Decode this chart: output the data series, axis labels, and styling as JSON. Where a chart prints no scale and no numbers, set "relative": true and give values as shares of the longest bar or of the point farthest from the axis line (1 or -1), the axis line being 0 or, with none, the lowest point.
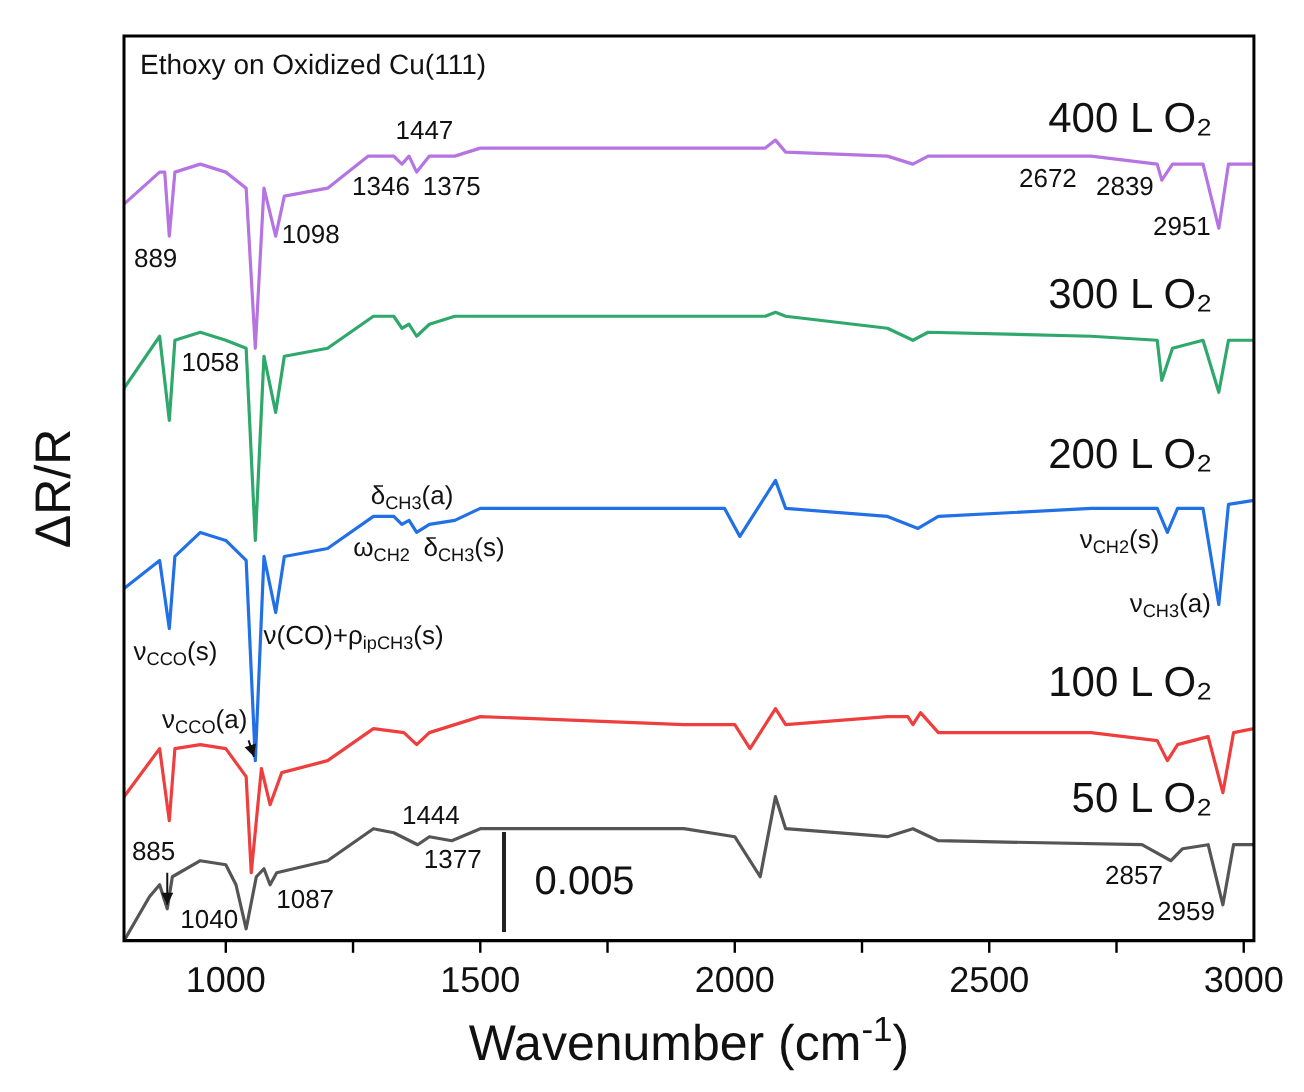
{
  "chart_data": {
    "type": "line",
    "title": "Ethoxy on Oxidized Cu(111)",
    "xlabel": "Wavenumber (cm$^{-1}$)",
    "ylabel": "ΔR/R",
    "relative": true,
    "xlim": [
      800,
      3020
    ],
    "xticks": [
      1000,
      {
        "value": 1250,
        "label": null
      },
      1500,
      {
        "value": 1750,
        "label": null
      },
      2000,
      {
        "value": 2250,
        "label": null
      },
      2500,
      {
        "value": 2750,
        "label": null
      },
      3000
    ],
    "grid": false,
    "legend": false,
    "tick_labels": "x",
    "marker": "none",
    "line_style": "solid",
    "series": [
      {
        "name": "400 L O₂",
        "color": "#b574e2",
        "x": [
          800,
          870,
          880,
          889,
          900,
          950,
          1000,
          1040,
          1058,
          1075,
          1098,
          1115,
          1200,
          1280,
          1330,
          1346,
          1360,
          1375,
          1400,
          1450,
          1500,
          1600,
          1800,
          2060,
          2080,
          2100,
          2300,
          2350,
          2380,
          2672,
          2700,
          2830,
          2839,
          2860,
          2920,
          2951,
          2970,
          3020
        ],
        "values": [
          0.92,
          0.96,
          0.96,
          0.88,
          0.96,
          0.97,
          0.96,
          0.94,
          0.74,
          0.94,
          0.88,
          0.93,
          0.94,
          0.98,
          0.98,
          0.97,
          0.98,
          0.96,
          0.98,
          0.98,
          0.99,
          0.99,
          0.99,
          0.99,
          1.0,
          0.985,
          0.98,
          0.97,
          0.98,
          0.98,
          0.98,
          0.97,
          0.95,
          0.97,
          0.97,
          0.89,
          0.97,
          0.97
        ]
      },
      {
        "name": "300 L O₂",
        "color": "#2fa86c",
        "x": [
          800,
          870,
          889,
          900,
          950,
          1000,
          1040,
          1058,
          1075,
          1098,
          1115,
          1200,
          1290,
          1330,
          1346,
          1360,
          1375,
          1400,
          1450,
          1500,
          1800,
          2060,
          2080,
          2100,
          2300,
          2350,
          2380,
          2700,
          2830,
          2839,
          2860,
          2920,
          2951,
          2970,
          3020
        ],
        "values": [
          0.69,
          0.755,
          0.65,
          0.75,
          0.76,
          0.75,
          0.74,
          0.5,
          0.73,
          0.66,
          0.73,
          0.74,
          0.78,
          0.78,
          0.765,
          0.77,
          0.755,
          0.77,
          0.78,
          0.78,
          0.78,
          0.78,
          0.785,
          0.78,
          0.765,
          0.75,
          0.76,
          0.755,
          0.75,
          0.7,
          0.74,
          0.75,
          0.685,
          0.75,
          0.75
        ]
      },
      {
        "name": "200 L O₂",
        "color": "#2270e6",
        "x": [
          800,
          870,
          889,
          900,
          950,
          1000,
          1040,
          1058,
          1075,
          1098,
          1115,
          1200,
          1290,
          1330,
          1346,
          1360,
          1375,
          1400,
          1450,
          1500,
          1800,
          1980,
          2010,
          2040,
          2080,
          2100,
          2300,
          2360,
          2400,
          2700,
          2830,
          2850,
          2870,
          2920,
          2951,
          2970,
          3020
        ],
        "values": [
          0.44,
          0.475,
          0.39,
          0.48,
          0.51,
          0.5,
          0.475,
          0.225,
          0.48,
          0.41,
          0.48,
          0.49,
          0.53,
          0.53,
          0.52,
          0.525,
          0.51,
          0.52,
          0.525,
          0.54,
          0.54,
          0.54,
          0.505,
          0.535,
          0.575,
          0.54,
          0.53,
          0.515,
          0.53,
          0.54,
          0.54,
          0.51,
          0.54,
          0.54,
          0.42,
          0.545,
          0.55
        ]
      },
      {
        "name": "100 L O₂",
        "color": "#ef3e3e",
        "x": [
          800,
          870,
          889,
          900,
          950,
          1000,
          1040,
          1050,
          1070,
          1087,
          1110,
          1200,
          1290,
          1350,
          1375,
          1400,
          1500,
          1900,
          2000,
          2030,
          2060,
          2080,
          2100,
          2300,
          2340,
          2350,
          2365,
          2400,
          2700,
          2830,
          2850,
          2870,
          2930,
          2959,
          2980,
          3020
        ],
        "values": [
          0.18,
          0.24,
          0.15,
          0.24,
          0.245,
          0.24,
          0.205,
          0.085,
          0.215,
          0.17,
          0.21,
          0.225,
          0.265,
          0.26,
          0.245,
          0.26,
          0.28,
          0.27,
          0.27,
          0.24,
          0.27,
          0.29,
          0.27,
          0.28,
          0.28,
          0.27,
          0.285,
          0.26,
          0.26,
          0.25,
          0.225,
          0.245,
          0.255,
          0.185,
          0.26,
          0.265
        ]
      },
      {
        "name": "50 L O₂",
        "color": "#555555",
        "x": [
          800,
          850,
          870,
          885,
          895,
          950,
          1000,
          1020,
          1040,
          1060,
          1075,
          1087,
          1100,
          1200,
          1290,
          1330,
          1377,
          1400,
          1444,
          1500,
          1900,
          2000,
          2050,
          2080,
          2100,
          2300,
          2350,
          2400,
          2800,
          2857,
          2880,
          2930,
          2959,
          2980,
          3020
        ],
        "values": [
          0,
          0.055,
          0.07,
          0.04,
          0.08,
          0.1,
          0.095,
          0.07,
          0.015,
          0.08,
          0.09,
          0.07,
          0.085,
          0.1,
          0.14,
          0.135,
          0.12,
          0.13,
          0.125,
          0.14,
          0.14,
          0.13,
          0.08,
          0.18,
          0.14,
          0.13,
          0.14,
          0.125,
          0.12,
          0.1,
          0.115,
          0.12,
          0.045,
          0.12,
          0.12
        ]
      }
    ],
    "annotations": [
      {
        "text": "889",
        "x": 889,
        "y": 0.88
      },
      {
        "text": "1098",
        "x": 1098,
        "y": 0.88
      },
      {
        "text": "1058",
        "x": 1058,
        "y": 0.74
      },
      {
        "text": "1346",
        "x": 1346,
        "y": 0.97
      },
      {
        "text": "1375",
        "x": 1375,
        "y": 0.96
      },
      {
        "text": "1447",
        "x": 1447,
        "y": 0.98
      },
      {
        "text": "2672",
        "x": 2672,
        "y": 0.98
      },
      {
        "text": "2839",
        "x": 2839,
        "y": 0.95
      },
      {
        "text": "2951",
        "x": 2951,
        "y": 0.89
      },
      {
        "text": "ω$_{CH2}$",
        "x": 1346,
        "y": 0.52
      },
      {
        "text": "δ$_{CH3}$(s)",
        "x": 1375,
        "y": 0.51
      },
      {
        "text": "δ$_{CH3}$(a)",
        "x": 1447,
        "y": 0.525
      },
      {
        "text": "ν$_{CH2}$(s)",
        "x": 2850,
        "y": 0.51
      },
      {
        "text": "ν$_{CCO}$(s)",
        "x": 889,
        "y": 0.39
      },
      {
        "text": "ν(CO)+ρ$_{ipCH3}$(s)",
        "x": 1098,
        "y": 0.41
      },
      {
        "text": "ν$_{CH3}$(a)",
        "x": 2951,
        "y": 0.42
      },
      {
        "text": "ν$_{CCO}$(a)",
        "x": 1058,
        "y": 0.225
      },
      {
        "text": "1377",
        "x": 1377,
        "y": 0.12
      },
      {
        "text": "1444",
        "x": 1444,
        "y": 0.125
      },
      {
        "text": "1087",
        "x": 1087,
        "y": 0.07
      },
      {
        "text": "1040",
        "x": 1040,
        "y": 0.015
      },
      {
        "text": "885",
        "x": 885,
        "y": 0.04
      },
      {
        "text": "2857",
        "x": 2857,
        "y": 0.1
      },
      {
        "text": "2959",
        "x": 2959,
        "y": 0.045
      },
      "0.005"
    ]
  }
}
